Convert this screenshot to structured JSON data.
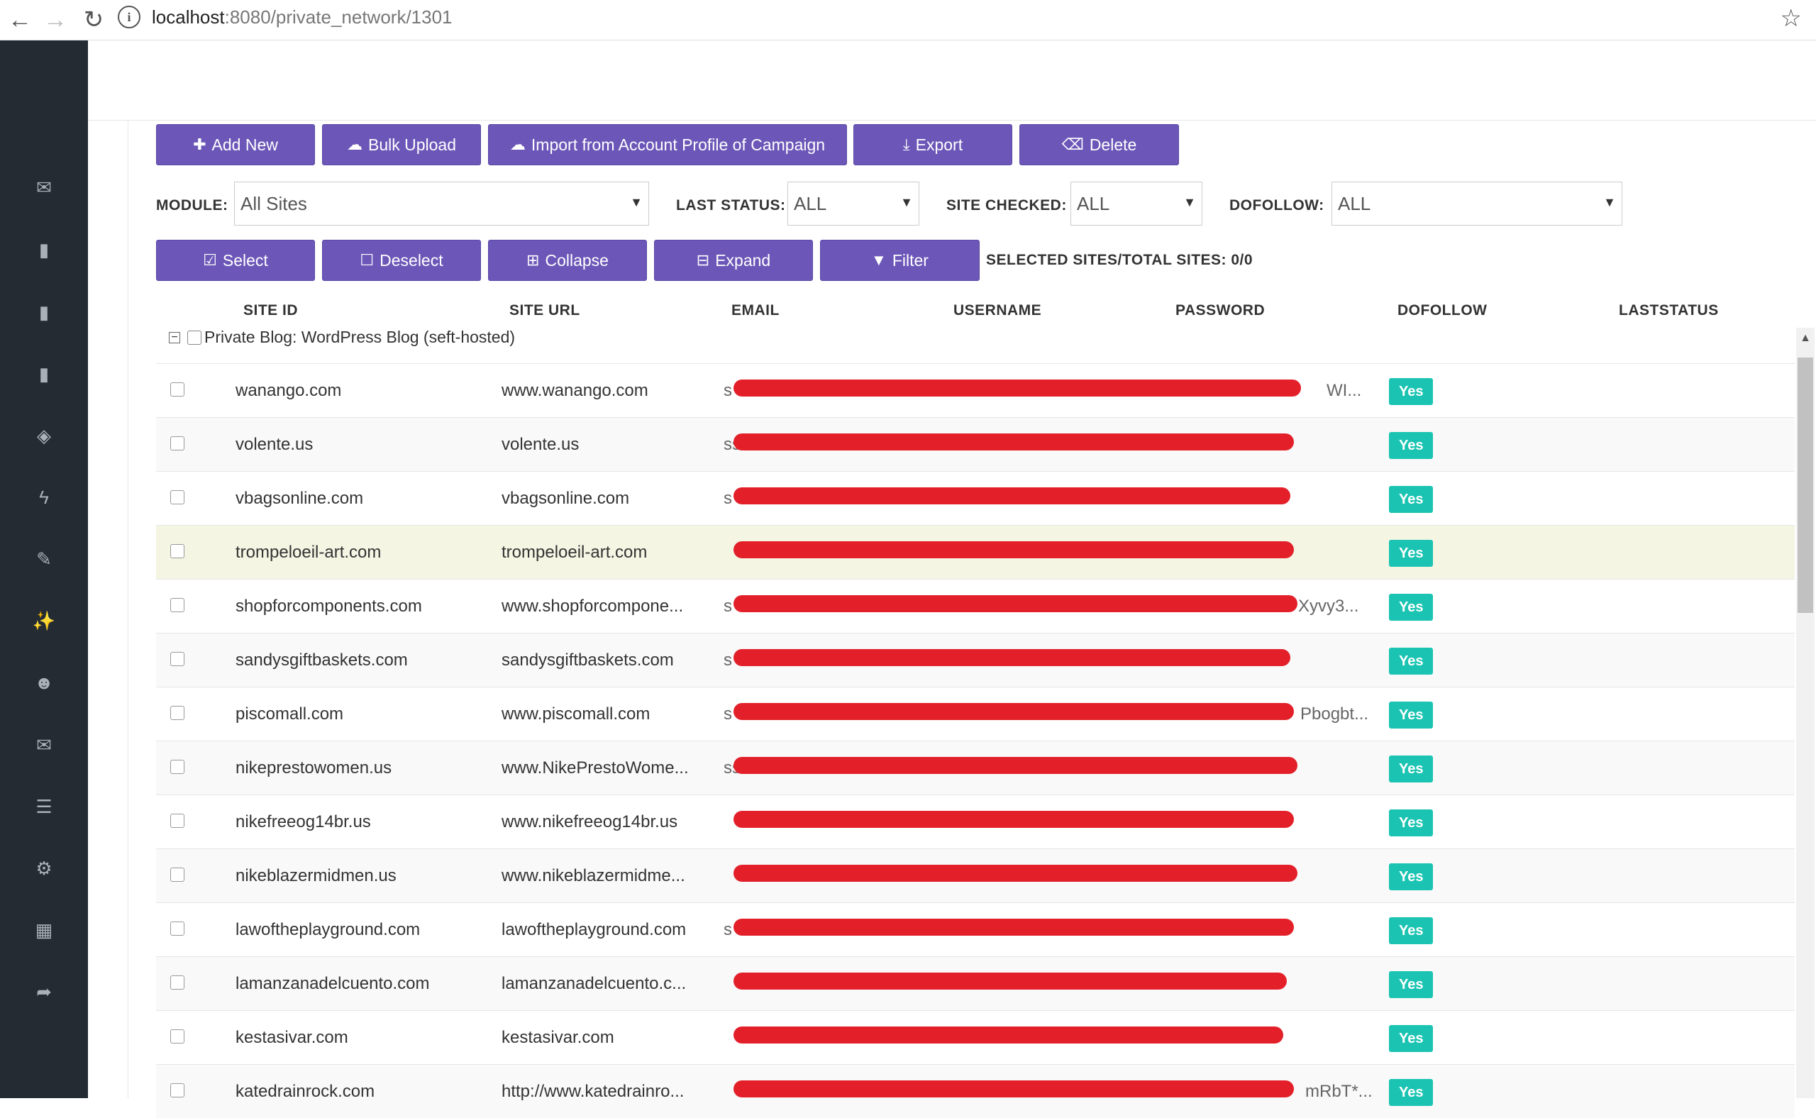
{
  "browser": {
    "url_host": "localhost",
    "url_path": ":8080/private_network/1301",
    "icons": {
      "back": "back-arrow-icon",
      "forward": "forward-arrow-icon",
      "reload": "reload-icon",
      "info": "info-icon",
      "bookmark": "bookmark-star-icon"
    }
  },
  "sidebar": {
    "icons": [
      "envelope-icon",
      "book-icon",
      "book-icon",
      "book-icon",
      "shield-icon",
      "bolt-icon",
      "edit-icon",
      "magic-wand-icon",
      "users-icon",
      "envelope-icon",
      "list-icon",
      "gears-icon",
      "calendar-icon",
      "sign-out-icon"
    ]
  },
  "toolbar": {
    "add_new": "Add New",
    "bulk_upload": "Bulk Upload",
    "import": "Import from Account Profile of Campaign",
    "export": "Export",
    "delete": "Delete"
  },
  "filters": {
    "module_label": "MODULE:",
    "module_value": "All Sites",
    "last_status_label": "LAST STATUS:",
    "last_status_value": "ALL",
    "site_checked_label": "SITE CHECKED:",
    "site_checked_value": "ALL",
    "dofollow_label": "DOFOLLOW:",
    "dofollow_value": "ALL"
  },
  "actions": {
    "select": "Select",
    "deselect": "Deselect",
    "collapse": "Collapse",
    "expand": "Expand",
    "filter": "Filter",
    "counter": "SELECTED SITES/TOTAL SITES: 0/0"
  },
  "table": {
    "columns": [
      "SITE ID",
      "SITE URL",
      "EMAIL",
      "USERNAME",
      "PASSWORD",
      "DOFOLLOW",
      "LASTSTATUS"
    ],
    "group_label": "Private Blog: WordPress Blog (seft-hosted)",
    "rows": [
      {
        "site_id": "wanango.com",
        "site_url": "www.wanango.com",
        "email": "s",
        "password": "WI...",
        "dofollow": "Yes"
      },
      {
        "site_id": "volente.us",
        "site_url": "volente.us",
        "email": "ss",
        "password": "",
        "dofollow": "Yes"
      },
      {
        "site_id": "vbagsonline.com",
        "site_url": "vbagsonline.com",
        "email": "s",
        "password": "",
        "dofollow": "Yes"
      },
      {
        "site_id": "trompeloeil-art.com",
        "site_url": "trompeloeil-art.com",
        "email": "",
        "password": "",
        "dofollow": "Yes"
      },
      {
        "site_id": "shopforcomponents.com",
        "site_url": "www.shopforcompone...",
        "email": "s",
        "password": "Xyvy3...",
        "dofollow": "Yes"
      },
      {
        "site_id": "sandysgiftbaskets.com",
        "site_url": "sandysgiftbaskets.com",
        "email": "s",
        "password": "",
        "dofollow": "Yes"
      },
      {
        "site_id": "piscomall.com",
        "site_url": "www.piscomall.com",
        "email": "s",
        "password": "Pbogbt...",
        "dofollow": "Yes"
      },
      {
        "site_id": "nikeprestowomen.us",
        "site_url": "www.NikePrestoWome...",
        "email": "ss",
        "password": "",
        "dofollow": "Yes"
      },
      {
        "site_id": "nikefreeog14br.us",
        "site_url": "www.nikefreeog14br.us",
        "email": "",
        "password": "",
        "dofollow": "Yes"
      },
      {
        "site_id": "nikeblazermidmen.us",
        "site_url": "www.nikeblazermidme...",
        "email": "",
        "password": "",
        "dofollow": "Yes"
      },
      {
        "site_id": "lawoftheplayground.com",
        "site_url": "lawoftheplayground.com",
        "email": "s",
        "password": "",
        "dofollow": "Yes"
      },
      {
        "site_id": "lamanzanadelcuento.com",
        "site_url": "lamanzanadelcuento.c...",
        "email": "",
        "password": "",
        "dofollow": "Yes"
      },
      {
        "site_id": "kestasivar.com",
        "site_url": "kestasivar.com",
        "email": "",
        "password": "",
        "dofollow": "Yes"
      },
      {
        "site_id": "katedrainrock.com",
        "site_url": "http://www.katedrainro...",
        "email": "",
        "password": "mRbT*...",
        "dofollow": "Yes"
      }
    ]
  },
  "colors": {
    "sidebar_bg": "#252b33",
    "button_bg": "#6c57b8",
    "badge_bg": "#1bc4b2",
    "highlight_row": "#f4f5e3",
    "redaction": "#e3202a"
  }
}
